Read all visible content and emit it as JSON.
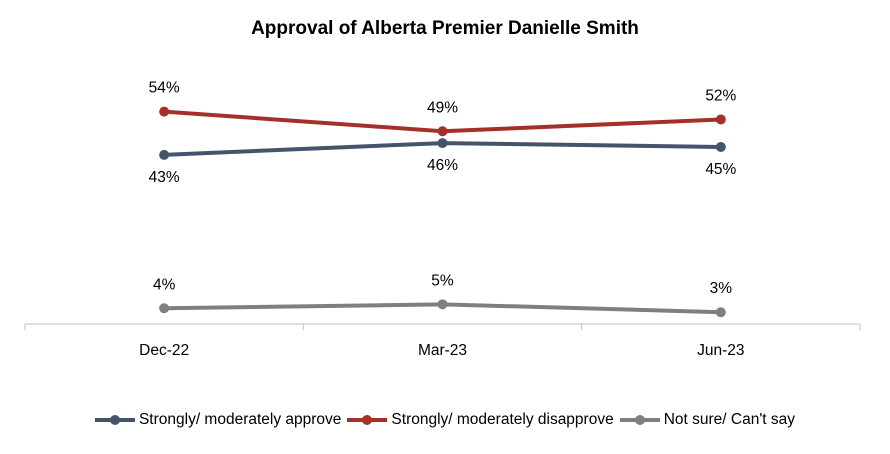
{
  "chart_data": {
    "type": "line",
    "title": "Approval of Alberta Premier Danielle Smith",
    "categories": [
      "Dec-22",
      "Mar-23",
      "Jun-23"
    ],
    "series": [
      {
        "name": "Strongly/ moderately approve",
        "values": [
          43,
          46,
          45
        ],
        "labels": [
          "43%",
          "46%",
          "45%"
        ],
        "color": "#44546A",
        "label_position": "below"
      },
      {
        "name": "Strongly/ moderately disapprove",
        "values": [
          54,
          49,
          52
        ],
        "labels": [
          "54%",
          "49%",
          "52%"
        ],
        "color": "#A5302A",
        "label_position": "above"
      },
      {
        "name": "Not sure/ Can't say",
        "values": [
          4,
          5,
          3
        ],
        "labels": [
          "4%",
          "5%",
          "3%"
        ],
        "color": "#7F7F7F",
        "label_position": "above"
      }
    ],
    "ylim": [
      0,
      60
    ],
    "grid": false,
    "legend": "bottom"
  }
}
